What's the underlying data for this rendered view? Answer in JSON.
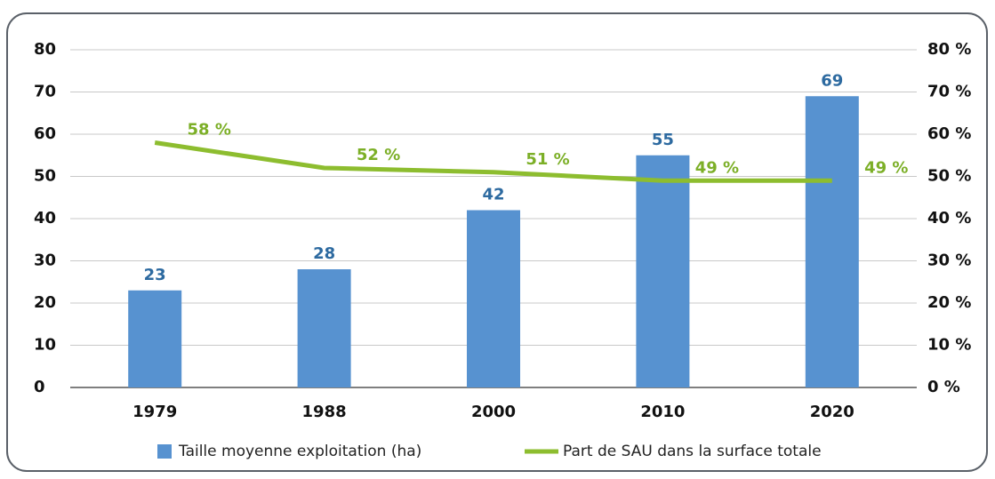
{
  "chart_data": {
    "type": "bar",
    "categories": [
      "1979",
      "1988",
      "2000",
      "2010",
      "2020"
    ],
    "series": [
      {
        "name": "Taille moyenne exploitation (ha)",
        "type": "bar",
        "color": "#5792d0",
        "label_color": "#2d6aa0",
        "values": [
          23,
          28,
          42,
          55,
          69
        ]
      },
      {
        "name": "Part de SAU dans la surface totale",
        "type": "line",
        "axis": "y2",
        "color": "#8dbd2f",
        "label_color": "#7caf27",
        "values": [
          58,
          52,
          51,
          49,
          49
        ],
        "value_labels": [
          "58 %",
          "52 %",
          "51 %",
          "49 %",
          "49 %"
        ]
      }
    ],
    "ylim": [
      0,
      80
    ],
    "yticks": [
      0,
      10,
      20,
      30,
      40,
      50,
      60,
      70,
      80
    ],
    "y2lim": [
      0,
      80
    ],
    "y2ticks": [
      {
        "value": 0,
        "label": "0 %"
      },
      {
        "value": 10,
        "label": "10 %"
      },
      {
        "value": 20,
        "label": "20 %"
      },
      {
        "value": 30,
        "label": "30 %"
      },
      {
        "value": 40,
        "label": "40 %"
      },
      {
        "value": 50,
        "label": "50 %"
      },
      {
        "value": 60,
        "label": "60 %"
      },
      {
        "value": 70,
        "label": "70 %"
      },
      {
        "value": 80,
        "label": "80 %"
      }
    ],
    "grid": true,
    "legend": "bottom"
  }
}
